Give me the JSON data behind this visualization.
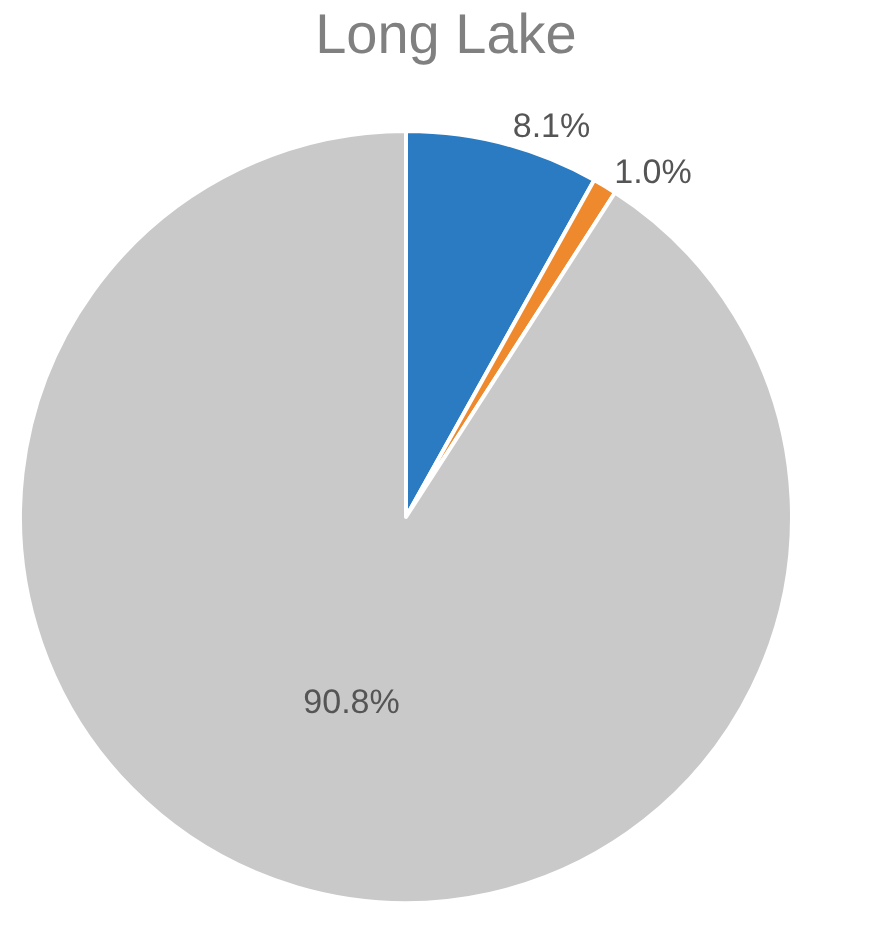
{
  "chart_data": {
    "type": "pie",
    "title": "Long Lake",
    "categories": [
      null,
      null,
      null
    ],
    "values": [
      8.1,
      1.0,
      90.8
    ],
    "colors": [
      "#2a7bc2",
      "#ee8a2d",
      "#c9c9c9"
    ],
    "value_labels": [
      "8.1%",
      "1.0%",
      "90.8%"
    ],
    "legend": false
  }
}
